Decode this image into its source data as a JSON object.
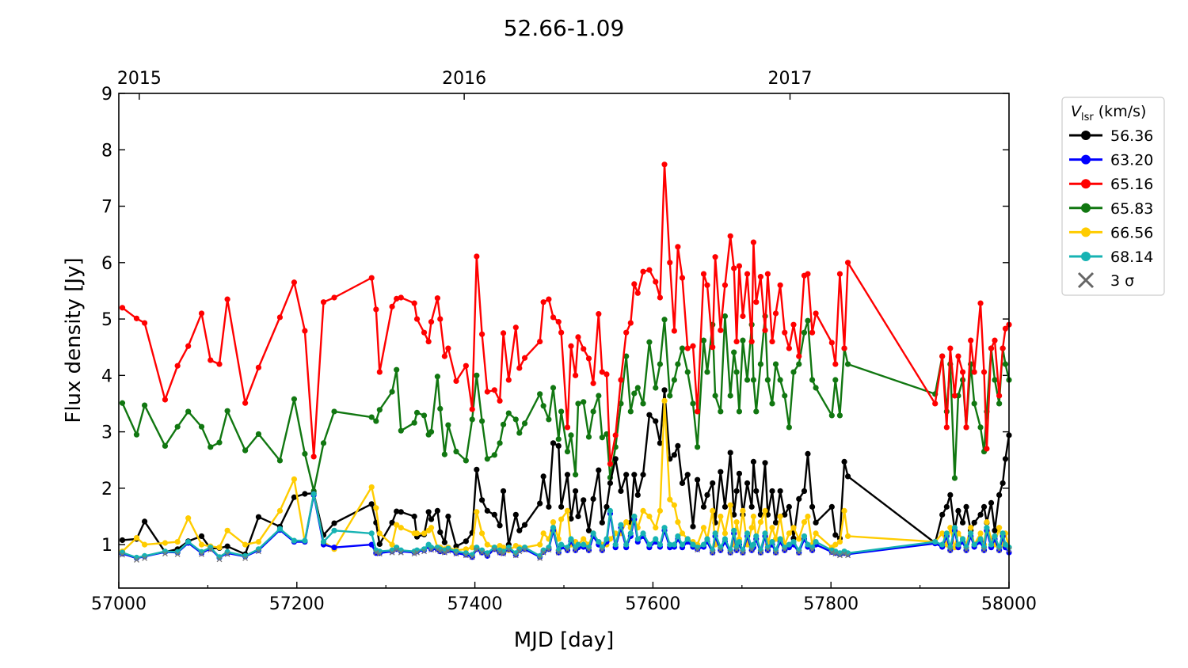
{
  "chart_data": {
    "type": "line",
    "title": "52.66-1.09",
    "xlabel": "MJD [day]",
    "ylabel": "Flux density [Jy]",
    "xlim": [
      57000,
      58000
    ],
    "ylim": [
      0.23,
      9
    ],
    "xticks": [
      57000,
      57200,
      57400,
      57600,
      57800,
      58000
    ],
    "yticks": [
      1,
      2,
      3,
      4,
      5,
      6,
      7,
      8,
      9
    ],
    "top_axis": {
      "ticks": [
        {
          "label": "2015",
          "mjd": 57023
        },
        {
          "label": "2016",
          "mjd": 57388
        },
        {
          "label": "2017",
          "mjd": 57754
        }
      ]
    },
    "grid": false,
    "legend": {
      "title_main": "V",
      "title_sub": "lsr",
      "title_unit": " (km/s)",
      "placement": "outside-right",
      "sigma_label": "3 σ",
      "sigma_color": "#666666"
    },
    "x": [
      57004,
      57020,
      57029,
      57052,
      57066,
      57078,
      57093,
      57103,
      57113,
      57122,
      57142,
      57157,
      57181,
      57197,
      57209,
      57219,
      57230,
      57242,
      57284,
      57289,
      57293,
      57307,
      57312,
      57317,
      57332,
      57335,
      57343,
      57348,
      57351,
      57358,
      57361,
      57366,
      57370,
      57379,
      57390,
      57397,
      57402,
      57408,
      57414,
      57422,
      57428,
      57432,
      57438,
      57446,
      57450,
      57456,
      57473,
      57477,
      57483,
      57488,
      57494,
      57497,
      57504,
      57508,
      57513,
      57516,
      57522,
      57528,
      57533,
      57539,
      57543,
      57548,
      57552,
      57558,
      57564,
      57570,
      57575,
      57579,
      57583,
      57589,
      57596,
      57603,
      57608,
      57613,
      57619,
      57624,
      57628,
      57633,
      57639,
      57645,
      57650,
      57657,
      57661,
      57667,
      57670,
      57676,
      57681,
      57687,
      57691,
      57694,
      57697,
      57701,
      57706,
      57711,
      57713,
      57716,
      57721,
      57726,
      57729,
      57734,
      57738,
      57743,
      57748,
      57753,
      57758,
      57764,
      57770,
      57774,
      57779,
      57783,
      57801,
      57805,
      57810,
      57815,
      57819,
      57917,
      57925,
      57930,
      57934,
      57939,
      57943,
      57948,
      57952,
      57957,
      57961,
      57968,
      57972,
      57975,
      57980,
      57984,
      57989,
      57993,
      57996,
      58000
    ],
    "series": [
      {
        "name": "56.36",
        "color": "#000000",
        "values": [
          1.08,
          1.1,
          1.41,
          0.87,
          0.92,
          1.06,
          1.15,
          0.93,
          0.94,
          0.97,
          0.83,
          1.49,
          1.32,
          1.84,
          1.9,
          1.91,
          1.17,
          1.38,
          1.72,
          1.39,
          1.01,
          1.39,
          1.59,
          1.58,
          1.5,
          1.14,
          1.18,
          1.58,
          1.45,
          1.6,
          1.22,
          1.04,
          1.5,
          0.97,
          1.06,
          1.21,
          2.33,
          1.79,
          1.6,
          1.53,
          1.34,
          1.95,
          1.0,
          1.53,
          1.25,
          1.35,
          1.73,
          2.21,
          1.67,
          2.8,
          2.75,
          1.67,
          2.24,
          1.46,
          1.95,
          1.5,
          1.79,
          1.25,
          1.81,
          2.32,
          1.39,
          1.67,
          2.09,
          2.52,
          1.95,
          2.24,
          1.39,
          2.24,
          1.88,
          2.24,
          3.3,
          3.19,
          2.8,
          3.74,
          2.52,
          2.59,
          2.75,
          2.09,
          2.24,
          1.32,
          2.15,
          1.67,
          1.88,
          2.09,
          1.39,
          2.29,
          1.67,
          2.63,
          1.53,
          1.95,
          2.26,
          1.53,
          2.09,
          1.67,
          2.47,
          1.95,
          1.53,
          2.45,
          1.53,
          1.95,
          1.39,
          1.95,
          1.53,
          1.67,
          1.11,
          1.81,
          1.95,
          2.61,
          1.67,
          1.39,
          1.67,
          1.17,
          1.11,
          2.47,
          2.21,
          1.03,
          1.53,
          1.67,
          1.88,
          1.25,
          1.6,
          1.39,
          1.67,
          1.25,
          1.39,
          1.53,
          1.67,
          1.39,
          1.74,
          1.25,
          1.88,
          2.09,
          2.52,
          2.94
        ]
      },
      {
        "name": "63.20",
        "color": "#0000ff",
        "values": [
          0.84,
          0.76,
          0.79,
          0.87,
          0.86,
          1.03,
          0.85,
          0.93,
          0.77,
          0.85,
          0.79,
          0.9,
          1.26,
          1.05,
          1.05,
          1.88,
          1.0,
          0.95,
          1.0,
          0.85,
          0.85,
          0.88,
          0.92,
          0.88,
          0.86,
          0.88,
          0.9,
          0.97,
          0.92,
          0.92,
          0.88,
          0.87,
          0.9,
          0.85,
          0.82,
          0.78,
          0.92,
          0.86,
          0.8,
          0.92,
          0.86,
          0.85,
          0.92,
          0.82,
          0.9,
          0.92,
          0.78,
          0.87,
          0.92,
          1.25,
          0.86,
          0.96,
          0.9,
          1.06,
          0.9,
          0.95,
          0.96,
          0.9,
          1.15,
          1.0,
          0.9,
          1.05,
          1.55,
          0.95,
          1.3,
          0.95,
          1.15,
          1.45,
          1.05,
          1.15,
          0.95,
          1.05,
          0.96,
          1.25,
          0.95,
          0.96,
          1.1,
          0.95,
          1.05,
          0.96,
          0.92,
          0.96,
          1.05,
          0.86,
          1.15,
          0.9,
          1.05,
          0.86,
          1.2,
          0.9,
          1.0,
          0.86,
          1.15,
          0.9,
          0.95,
          1.1,
          0.86,
          1.15,
          0.9,
          1.0,
          0.86,
          1.05,
          0.9,
          0.95,
          1.0,
          0.86,
          1.1,
          0.96,
          0.9,
          1.0,
          0.87,
          0.85,
          0.83,
          0.85,
          0.83,
          1.02,
          0.96,
          1.15,
          0.9,
          1.25,
          0.95,
          1.05,
          0.9,
          1.15,
          0.96,
          1.05,
          0.9,
          1.25,
          0.95,
          1.1,
          0.9,
          1.15,
          0.95,
          0.86
        ]
      },
      {
        "name": "65.16",
        "color": "#ff0000",
        "values": [
          5.2,
          5.01,
          4.93,
          3.57,
          4.17,
          4.52,
          5.1,
          4.27,
          4.2,
          5.35,
          3.51,
          4.14,
          5.03,
          5.65,
          4.79,
          2.56,
          5.3,
          5.38,
          5.73,
          5.17,
          4.06,
          5.22,
          5.36,
          5.38,
          5.28,
          5.0,
          4.76,
          4.6,
          4.95,
          5.37,
          5.0,
          4.34,
          4.48,
          3.9,
          4.17,
          3.4,
          6.11,
          4.73,
          3.71,
          3.74,
          3.55,
          4.75,
          3.92,
          4.85,
          4.13,
          4.31,
          4.6,
          5.3,
          5.35,
          5.03,
          4.95,
          4.76,
          3.08,
          4.52,
          4.0,
          4.68,
          4.47,
          4.3,
          3.86,
          5.09,
          4.06,
          4.02,
          2.43,
          2.94,
          3.92,
          4.76,
          4.93,
          5.62,
          5.46,
          5.84,
          5.87,
          5.66,
          5.38,
          7.74,
          6.0,
          4.79,
          6.28,
          5.73,
          4.48,
          4.52,
          3.36,
          5.8,
          5.6,
          4.5,
          6.1,
          4.8,
          5.6,
          6.47,
          5.9,
          4.6,
          5.94,
          5.05,
          5.8,
          4.6,
          6.36,
          5.3,
          5.75,
          4.8,
          5.8,
          4.6,
          5.1,
          5.6,
          4.76,
          4.48,
          4.9,
          4.34,
          5.77,
          5.8,
          4.76,
          5.1,
          4.58,
          4.2,
          5.8,
          4.48,
          6.0,
          3.5,
          4.34,
          3.08,
          4.48,
          3.64,
          4.34,
          4.06,
          3.08,
          4.62,
          4.06,
          5.28,
          4.06,
          2.7,
          4.48,
          4.62,
          3.64,
          4.48,
          4.83,
          4.9
        ]
      },
      {
        "name": "65.83",
        "color": "#117711",
        "values": [
          3.51,
          2.95,
          3.47,
          2.75,
          3.09,
          3.36,
          3.09,
          2.73,
          2.81,
          3.37,
          2.67,
          2.96,
          2.49,
          3.58,
          2.61,
          1.95,
          2.8,
          3.36,
          3.26,
          3.19,
          3.39,
          3.71,
          4.1,
          3.02,
          3.16,
          3.34,
          3.29,
          2.95,
          3.0,
          3.98,
          3.41,
          2.6,
          3.12,
          2.65,
          2.49,
          3.22,
          4.0,
          3.19,
          2.52,
          2.59,
          2.8,
          3.13,
          3.33,
          3.22,
          2.98,
          3.15,
          3.67,
          3.46,
          3.22,
          3.78,
          2.87,
          3.36,
          2.65,
          2.94,
          2.24,
          3.5,
          3.53,
          2.91,
          3.36,
          3.64,
          2.9,
          2.96,
          2.19,
          2.73,
          3.5,
          4.34,
          3.36,
          3.68,
          3.78,
          3.5,
          4.59,
          3.78,
          4.2,
          4.99,
          3.64,
          3.92,
          4.2,
          4.48,
          4.06,
          3.5,
          2.73,
          4.62,
          4.06,
          4.9,
          3.64,
          3.36,
          5.05,
          3.64,
          4.41,
          4.06,
          3.36,
          4.62,
          3.92,
          4.9,
          3.92,
          3.36,
          4.2,
          5.05,
          3.92,
          3.5,
          4.2,
          3.92,
          3.64,
          3.08,
          4.06,
          4.2,
          4.76,
          4.97,
          3.92,
          3.78,
          3.29,
          3.92,
          3.29,
          4.48,
          4.2,
          3.67,
          4.34,
          3.36,
          4.2,
          2.18,
          3.64,
          3.92,
          3.08,
          4.2,
          3.5,
          3.08,
          2.65,
          3.36,
          4.48,
          3.92,
          3.5,
          4.48,
          4.2,
          3.92
        ]
      },
      {
        "name": "66.56",
        "color": "#ffcc00",
        "values": [
          0.88,
          1.12,
          1.0,
          1.03,
          1.05,
          1.47,
          1.0,
          0.97,
          0.95,
          1.25,
          1.0,
          1.05,
          1.6,
          2.16,
          1.05,
          1.9,
          1.05,
          0.92,
          2.02,
          1.65,
          1.2,
          1.0,
          1.35,
          1.3,
          1.2,
          1.2,
          1.2,
          1.25,
          1.3,
          0.95,
          0.95,
          0.92,
          0.95,
          0.9,
          0.92,
          0.95,
          1.58,
          1.2,
          1.0,
          0.95,
          0.98,
          0.95,
          0.9,
          0.98,
          0.95,
          0.95,
          1.0,
          1.2,
          1.1,
          1.4,
          1.1,
          1.45,
          1.6,
          1.0,
          1.05,
          1.0,
          1.1,
          1.0,
          1.2,
          1.05,
          1.0,
          1.0,
          1.1,
          1.2,
          1.2,
          1.4,
          1.3,
          1.5,
          1.3,
          1.6,
          1.5,
          1.3,
          1.6,
          3.55,
          1.8,
          1.7,
          1.4,
          1.2,
          1.1,
          1.05,
          1.0,
          1.3,
          1.1,
          1.6,
          1.0,
          1.5,
          1.2,
          1.7,
          1.0,
          1.4,
          1.1,
          1.6,
          1.0,
          1.3,
          1.5,
          1.1,
          1.4,
          1.6,
          1.0,
          1.3,
          1.1,
          1.5,
          1.0,
          1.2,
          1.3,
          1.1,
          1.4,
          1.5,
          1.0,
          1.2,
          0.95,
          1.0,
          1.05,
          1.6,
          1.15,
          1.05,
          1.2,
          1.0,
          1.3,
          0.95,
          1.2,
          1.1,
          1.0,
          1.3,
          1.0,
          1.2,
          1.0,
          1.4,
          1.1,
          1.0,
          1.3,
          1.0,
          1.2,
          0.95
        ]
      },
      {
        "name": "68.14",
        "color": "#17b3b3",
        "values": [
          0.86,
          0.77,
          0.8,
          0.88,
          0.87,
          1.05,
          0.87,
          0.95,
          0.78,
          0.87,
          0.8,
          0.92,
          1.28,
          1.07,
          1.07,
          1.9,
          1.05,
          1.25,
          1.2,
          0.9,
          0.88,
          0.9,
          0.95,
          0.9,
          0.88,
          0.9,
          0.92,
          1.0,
          0.95,
          0.95,
          0.92,
          0.9,
          0.93,
          0.88,
          0.85,
          0.82,
          0.95,
          0.9,
          0.85,
          0.95,
          0.9,
          0.88,
          0.95,
          0.85,
          0.92,
          0.95,
          0.8,
          0.9,
          0.95,
          1.3,
          0.9,
          1.0,
          0.95,
          1.1,
          0.95,
          1.0,
          1.0,
          0.95,
          1.2,
          1.05,
          0.95,
          1.1,
          1.6,
          1.0,
          1.35,
          1.0,
          1.2,
          1.5,
          1.1,
          1.2,
          1.0,
          1.1,
          1.0,
          1.3,
          1.0,
          1.0,
          1.15,
          1.0,
          1.1,
          1.0,
          0.95,
          1.0,
          1.1,
          0.9,
          1.2,
          0.95,
          1.1,
          0.9,
          1.25,
          0.95,
          1.05,
          0.9,
          1.2,
          0.95,
          1.0,
          1.15,
          0.9,
          1.2,
          0.95,
          1.05,
          0.9,
          1.1,
          0.95,
          1.0,
          1.05,
          0.9,
          1.15,
          1.0,
          0.95,
          1.05,
          0.9,
          0.88,
          0.85,
          0.88,
          0.85,
          1.05,
          1.0,
          1.2,
          0.95,
          1.3,
          1.0,
          1.1,
          0.95,
          1.2,
          1.0,
          1.1,
          0.95,
          1.3,
          1.0,
          1.15,
          0.95,
          1.2,
          1.0,
          0.95
        ]
      }
    ]
  }
}
